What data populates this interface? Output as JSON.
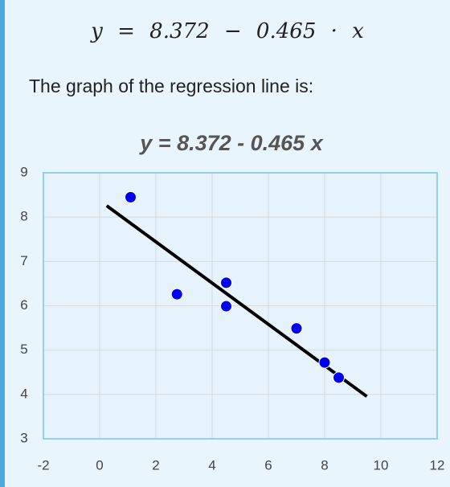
{
  "formula": "y = 8.372 − 0.465 · x",
  "text": "The graph of the regression line is:",
  "chart_data": {
    "type": "scatter",
    "title": "y = 8.372 - 0.465 x",
    "xlim": [
      -2,
      12
    ],
    "xticks": [
      -2,
      0,
      2,
      4,
      6,
      8,
      10,
      12
    ],
    "ylim": [
      3,
      9
    ],
    "yticks": [
      3,
      4,
      5,
      6,
      7,
      8,
      9
    ],
    "grid": true,
    "series": [
      {
        "type": "scatter",
        "color": "#0000ee",
        "x": [
          1.1,
          2.75,
          4.5,
          4.5,
          7.0,
          8.0,
          8.5
        ],
        "values": [
          8.45,
          6.26,
          6.52,
          5.99,
          5.49,
          4.72,
          4.38
        ]
      },
      {
        "type": "line",
        "color": "#000000",
        "x": [
          0.25,
          9.5
        ],
        "values": [
          8.256,
          3.955
        ]
      }
    ]
  }
}
